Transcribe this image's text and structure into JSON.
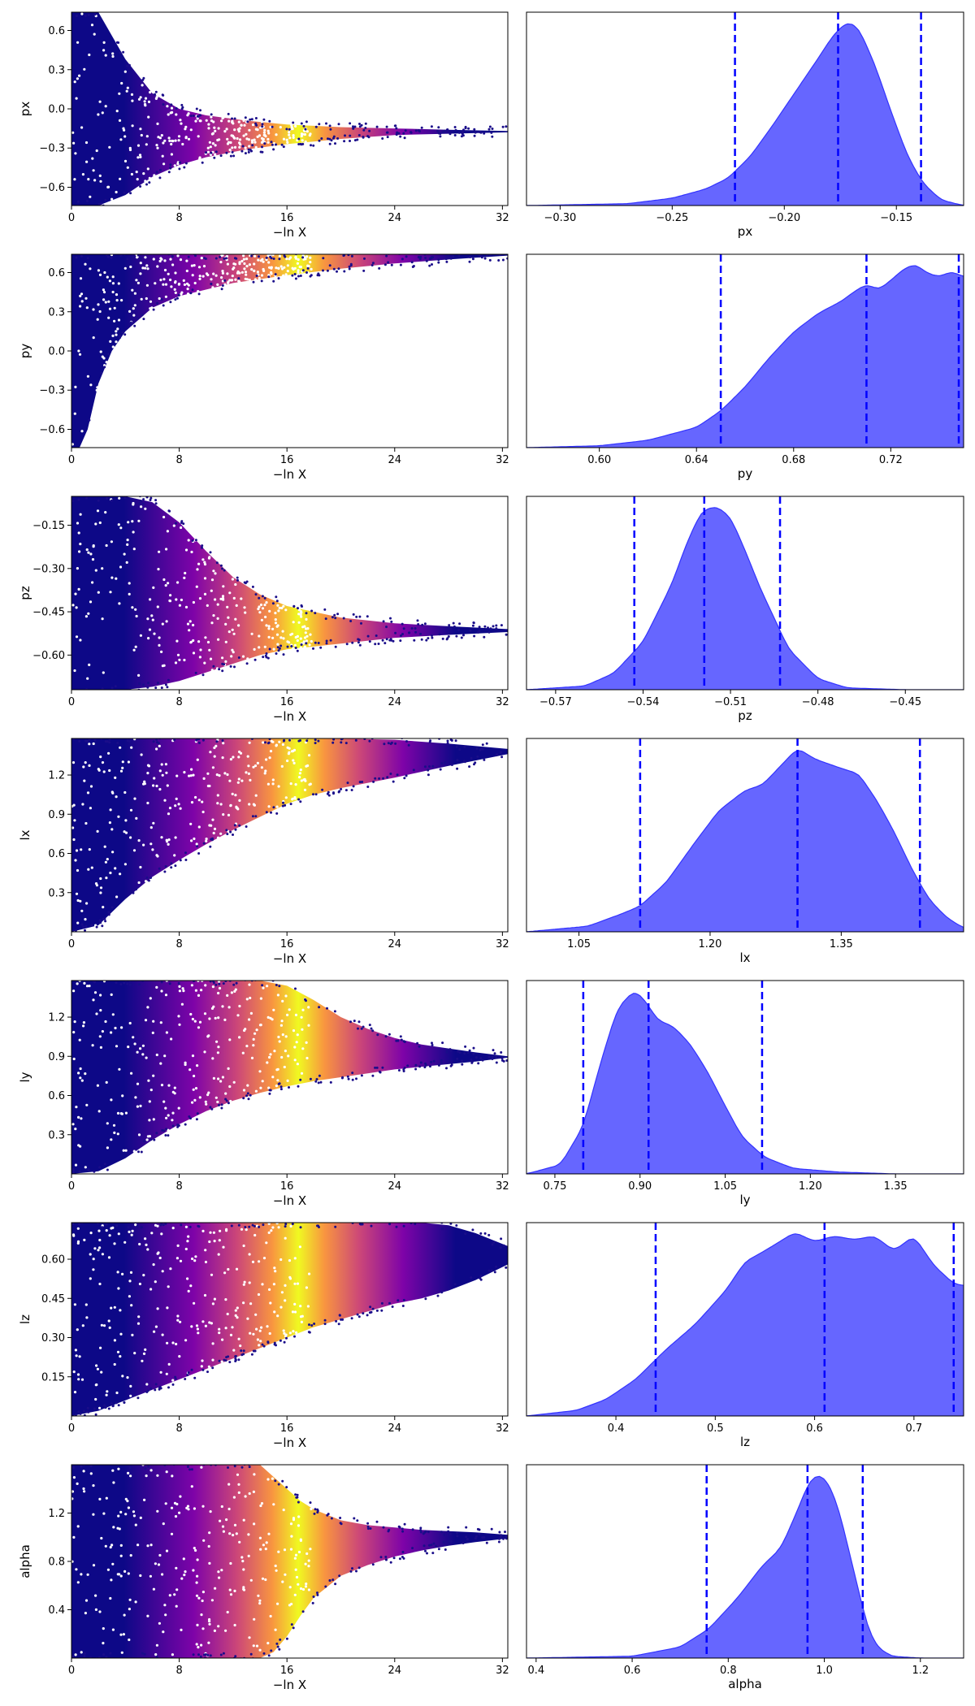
{
  "chart_data": [
    {
      "type": "scatter",
      "title": "",
      "xlabel": "−ln X",
      "ylabel": "px",
      "xlim": [
        0,
        32.4
      ],
      "ylim": [
        -0.74,
        0.74
      ],
      "xticks": [
        "0",
        "8",
        "16",
        "24",
        "32"
      ],
      "yticks": [
        "0.6",
        "0.3",
        "0.0",
        "−0.3",
        "−0.6"
      ],
      "ytick_values": [
        0.6,
        0.3,
        0.0,
        -0.3,
        -0.6
      ],
      "colormap": "plasma",
      "envelope": {
        "x": [
          0,
          2,
          4,
          6,
          8,
          10,
          13,
          16,
          20,
          24,
          28,
          32.4
        ],
        "low": [
          -0.74,
          -0.74,
          -0.66,
          -0.52,
          -0.43,
          -0.37,
          -0.31,
          -0.27,
          -0.23,
          -0.2,
          -0.19,
          -0.18
        ],
        "high": [
          0.74,
          0.74,
          0.38,
          0.12,
          0.0,
          -0.05,
          -0.09,
          -0.12,
          -0.14,
          -0.15,
          -0.16,
          -0.17
        ]
      }
    },
    {
      "type": "area",
      "title": "",
      "xlabel": "px",
      "ylabel": "",
      "xlim": [
        -0.315,
        -0.12
      ],
      "xticks": [
        "−0.30",
        "−0.25",
        "−0.20",
        "−0.15"
      ],
      "xtick_values": [
        -0.3,
        -0.25,
        -0.2,
        -0.15
      ],
      "quantiles": [
        -0.222,
        -0.176,
        -0.139
      ],
      "density": {
        "x": [
          -0.315,
          -0.27,
          -0.25,
          -0.235,
          -0.225,
          -0.215,
          -0.205,
          -0.195,
          -0.185,
          -0.178,
          -0.172,
          -0.167,
          -0.16,
          -0.152,
          -0.145,
          -0.138,
          -0.13,
          -0.12
        ],
        "y": [
          0.0,
          0.01,
          0.04,
          0.09,
          0.15,
          0.27,
          0.44,
          0.62,
          0.8,
          0.93,
          1.0,
          0.97,
          0.78,
          0.5,
          0.27,
          0.12,
          0.03,
          0.0
        ]
      }
    },
    {
      "type": "scatter",
      "title": "",
      "xlabel": "−ln X",
      "ylabel": "py",
      "xlim": [
        0,
        32.4
      ],
      "ylim": [
        -0.74,
        0.74
      ],
      "xticks": [
        "0",
        "8",
        "16",
        "24",
        "32"
      ],
      "yticks": [
        "0.6",
        "0.3",
        "0.0",
        "−0.3",
        "−0.6"
      ],
      "ytick_values": [
        0.6,
        0.3,
        0.0,
        -0.3,
        -0.6
      ],
      "colormap": "plasma",
      "envelope": {
        "x": [
          0,
          0.6,
          1.2,
          2,
          3,
          4,
          6,
          8,
          12,
          16,
          20,
          24,
          28,
          32.4
        ],
        "low": [
          -0.74,
          -0.74,
          -0.6,
          -0.25,
          0.0,
          0.15,
          0.33,
          0.42,
          0.52,
          0.58,
          0.63,
          0.67,
          0.7,
          0.73
        ],
        "high": [
          0.74,
          0.74,
          0.74,
          0.74,
          0.74,
          0.74,
          0.74,
          0.74,
          0.74,
          0.74,
          0.74,
          0.74,
          0.74,
          0.74
        ]
      }
    },
    {
      "type": "area",
      "title": "",
      "xlabel": "py",
      "ylabel": "",
      "xlim": [
        0.57,
        0.75
      ],
      "xticks": [
        "0.60",
        "0.64",
        "0.68",
        "0.72"
      ],
      "xtick_values": [
        0.6,
        0.64,
        0.68,
        0.72
      ],
      "quantiles": [
        0.65,
        0.71,
        0.748
      ],
      "density": {
        "x": [
          0.57,
          0.6,
          0.62,
          0.64,
          0.65,
          0.66,
          0.67,
          0.68,
          0.69,
          0.7,
          0.705,
          0.71,
          0.715,
          0.72,
          0.725,
          0.73,
          0.735,
          0.74,
          0.745,
          0.75
        ],
        "y": [
          0.0,
          0.01,
          0.04,
          0.11,
          0.2,
          0.33,
          0.49,
          0.63,
          0.73,
          0.8,
          0.85,
          0.89,
          0.86,
          0.91,
          0.97,
          1.0,
          0.95,
          0.93,
          0.96,
          0.93
        ]
      }
    },
    {
      "type": "scatter",
      "title": "",
      "xlabel": "−ln X",
      "ylabel": "pz",
      "xlim": [
        0,
        32.4
      ],
      "ylim": [
        -0.72,
        -0.05
      ],
      "xticks": [
        "0",
        "8",
        "16",
        "24",
        "32"
      ],
      "yticks": [
        "−0.15",
        "−0.30",
        "−0.45",
        "−0.60"
      ],
      "ytick_values": [
        -0.15,
        -0.3,
        -0.45,
        -0.6
      ],
      "colormap": "plasma",
      "envelope": {
        "x": [
          0,
          2,
          4,
          6,
          8,
          10,
          12,
          14,
          16,
          20,
          24,
          28,
          32.4
        ],
        "low": [
          -0.72,
          -0.72,
          -0.72,
          -0.71,
          -0.69,
          -0.66,
          -0.63,
          -0.6,
          -0.58,
          -0.56,
          -0.54,
          -0.53,
          -0.52
        ],
        "high": [
          -0.05,
          -0.05,
          -0.05,
          -0.07,
          -0.14,
          -0.24,
          -0.33,
          -0.39,
          -0.43,
          -0.47,
          -0.49,
          -0.5,
          -0.51
        ]
      }
    },
    {
      "type": "area",
      "title": "",
      "xlabel": "pz",
      "ylabel": "",
      "xlim": [
        -0.58,
        -0.43
      ],
      "xticks": [
        "−0.57",
        "−0.54",
        "−0.51",
        "−0.48",
        "−0.45"
      ],
      "xtick_values": [
        -0.57,
        -0.54,
        -0.51,
        -0.48,
        -0.45
      ],
      "quantiles": [
        -0.543,
        -0.519,
        -0.493
      ],
      "density": {
        "x": [
          -0.58,
          -0.56,
          -0.55,
          -0.54,
          -0.53,
          -0.525,
          -0.52,
          -0.515,
          -0.51,
          -0.505,
          -0.5,
          -0.49,
          -0.48,
          -0.47,
          -0.45,
          -0.43
        ],
        "y": [
          0.0,
          0.02,
          0.09,
          0.26,
          0.58,
          0.8,
          0.97,
          1.0,
          0.94,
          0.76,
          0.56,
          0.22,
          0.06,
          0.01,
          0.0,
          0.0
        ]
      }
    },
    {
      "type": "scatter",
      "title": "",
      "xlabel": "−ln X",
      "ylabel": "lx",
      "xlim": [
        0,
        32.4
      ],
      "ylim": [
        0.0,
        1.48
      ],
      "xticks": [
        "0",
        "8",
        "16",
        "24",
        "32"
      ],
      "yticks": [
        "1.2",
        "0.9",
        "0.6",
        "0.3"
      ],
      "ytick_values": [
        1.2,
        0.9,
        0.6,
        0.3
      ],
      "colormap": "plasma",
      "envelope": {
        "x": [
          0,
          2,
          4,
          6,
          8,
          10,
          12,
          14,
          16,
          18,
          20,
          24,
          28,
          32.4
        ],
        "low": [
          0.0,
          0.05,
          0.25,
          0.42,
          0.55,
          0.67,
          0.78,
          0.88,
          0.98,
          1.05,
          1.1,
          1.18,
          1.27,
          1.36
        ],
        "high": [
          1.48,
          1.48,
          1.48,
          1.48,
          1.48,
          1.48,
          1.48,
          1.48,
          1.48,
          1.48,
          1.48,
          1.47,
          1.44,
          1.4
        ]
      }
    },
    {
      "type": "area",
      "title": "",
      "xlabel": "lx",
      "ylabel": "",
      "xlim": [
        0.99,
        1.49
      ],
      "xticks": [
        "1.05",
        "1.20",
        "1.35"
      ],
      "xtick_values": [
        1.05,
        1.2,
        1.35
      ],
      "quantiles": [
        1.12,
        1.3,
        1.44
      ],
      "density": {
        "x": [
          0.99,
          1.06,
          1.1,
          1.12,
          1.15,
          1.18,
          1.21,
          1.24,
          1.26,
          1.28,
          1.3,
          1.32,
          1.35,
          1.37,
          1.39,
          1.41,
          1.43,
          1.45,
          1.47,
          1.49
        ],
        "y": [
          0.0,
          0.03,
          0.1,
          0.14,
          0.27,
          0.47,
          0.66,
          0.77,
          0.8,
          0.9,
          1.0,
          0.94,
          0.89,
          0.86,
          0.72,
          0.55,
          0.35,
          0.18,
          0.08,
          0.02
        ]
      }
    },
    {
      "type": "scatter",
      "title": "",
      "xlabel": "−ln X",
      "ylabel": "ly",
      "xlim": [
        0,
        32.4
      ],
      "ylim": [
        0.0,
        1.48
      ],
      "xticks": [
        "0",
        "8",
        "16",
        "24",
        "32"
      ],
      "yticks": [
        "1.2",
        "0.9",
        "0.6",
        "0.3"
      ],
      "ytick_values": [
        1.2,
        0.9,
        0.6,
        0.3
      ],
      "colormap": "plasma",
      "envelope": {
        "x": [
          0,
          2,
          4,
          6,
          8,
          10,
          12,
          14,
          16,
          18,
          20,
          22,
          24,
          26,
          28,
          30,
          32.4
        ],
        "low": [
          0.0,
          0.02,
          0.12,
          0.26,
          0.38,
          0.48,
          0.56,
          0.62,
          0.67,
          0.71,
          0.74,
          0.77,
          0.8,
          0.82,
          0.84,
          0.86,
          0.89
        ],
        "high": [
          1.48,
          1.48,
          1.48,
          1.48,
          1.48,
          1.48,
          1.48,
          1.48,
          1.44,
          1.33,
          1.2,
          1.11,
          1.04,
          0.99,
          0.96,
          0.93,
          0.9
        ]
      }
    },
    {
      "type": "area",
      "title": "",
      "xlabel": "ly",
      "ylabel": "",
      "xlim": [
        0.7,
        1.47
      ],
      "xticks": [
        "0.75",
        "0.90",
        "1.05",
        "1.20",
        "1.35"
      ],
      "xtick_values": [
        0.75,
        0.9,
        1.05,
        1.2,
        1.35
      ],
      "quantiles": [
        0.8,
        0.915,
        1.115
      ],
      "density": {
        "x": [
          0.7,
          0.76,
          0.8,
          0.83,
          0.86,
          0.89,
          0.91,
          0.93,
          0.96,
          0.99,
          1.02,
          1.05,
          1.08,
          1.12,
          1.17,
          1.25,
          1.35,
          1.47
        ],
        "y": [
          0.0,
          0.05,
          0.26,
          0.6,
          0.9,
          1.0,
          0.94,
          0.84,
          0.8,
          0.7,
          0.55,
          0.37,
          0.2,
          0.09,
          0.03,
          0.01,
          0.0,
          0.0
        ]
      }
    },
    {
      "type": "scatter",
      "title": "",
      "xlabel": "−ln X",
      "ylabel": "lz",
      "xlim": [
        0,
        32.4
      ],
      "ylim": [
        0.0,
        0.74
      ],
      "xticks": [
        "0",
        "8",
        "16",
        "24",
        "32"
      ],
      "yticks": [
        "0.60",
        "0.45",
        "0.30",
        "0.15"
      ],
      "ytick_values": [
        0.6,
        0.45,
        0.3,
        0.15
      ],
      "colormap": "plasma",
      "envelope": {
        "x": [
          0,
          2,
          4,
          6,
          8,
          10,
          12,
          14,
          16,
          18,
          20,
          22,
          24,
          26,
          28,
          30,
          32.4
        ],
        "low": [
          0.0,
          0.02,
          0.06,
          0.1,
          0.14,
          0.18,
          0.22,
          0.26,
          0.3,
          0.34,
          0.37,
          0.4,
          0.43,
          0.45,
          0.48,
          0.52,
          0.58
        ],
        "high": [
          0.74,
          0.74,
          0.74,
          0.74,
          0.74,
          0.74,
          0.74,
          0.74,
          0.74,
          0.74,
          0.74,
          0.74,
          0.74,
          0.74,
          0.73,
          0.7,
          0.65
        ]
      }
    },
    {
      "type": "area",
      "title": "",
      "xlabel": "lz",
      "ylabel": "",
      "xlim": [
        0.31,
        0.75
      ],
      "xticks": [
        "0.4",
        "0.5",
        "0.6",
        "0.7"
      ],
      "xtick_values": [
        0.4,
        0.5,
        0.6,
        0.7
      ],
      "quantiles": [
        0.44,
        0.61,
        0.74
      ],
      "density": {
        "x": [
          0.31,
          0.36,
          0.39,
          0.42,
          0.45,
          0.48,
          0.51,
          0.53,
          0.55,
          0.58,
          0.6,
          0.62,
          0.64,
          0.66,
          0.68,
          0.7,
          0.72,
          0.74,
          0.75
        ],
        "y": [
          0.0,
          0.03,
          0.09,
          0.2,
          0.36,
          0.5,
          0.68,
          0.84,
          0.9,
          1.0,
          0.95,
          0.98,
          0.96,
          0.98,
          0.9,
          0.98,
          0.82,
          0.72,
          0.71
        ]
      }
    },
    {
      "type": "scatter",
      "title": "",
      "xlabel": "−ln X",
      "ylabel": "alpha",
      "xlim": [
        0,
        32.4
      ],
      "ylim": [
        0.0,
        1.6
      ],
      "xticks": [
        "0",
        "8",
        "16",
        "24",
        "32"
      ],
      "yticks": [
        "1.2",
        "0.8",
        "0.4"
      ],
      "ytick_values": [
        1.2,
        0.8,
        0.4
      ],
      "colormap": "plasma",
      "envelope": {
        "x": [
          0,
          4,
          8,
          12,
          14,
          15,
          16,
          17,
          18,
          20,
          22,
          24,
          26,
          28,
          30,
          32.4
        ],
        "low": [
          0.0,
          0.0,
          0.0,
          0.0,
          0.0,
          0.05,
          0.18,
          0.35,
          0.5,
          0.68,
          0.77,
          0.84,
          0.89,
          0.93,
          0.96,
          0.99
        ],
        "high": [
          1.6,
          1.6,
          1.6,
          1.6,
          1.6,
          1.5,
          1.4,
          1.3,
          1.23,
          1.14,
          1.1,
          1.08,
          1.06,
          1.05,
          1.04,
          1.02
        ]
      }
    },
    {
      "type": "area",
      "title": "",
      "xlabel": "alpha",
      "ylabel": "",
      "xlim": [
        0.38,
        1.29
      ],
      "xticks": [
        "0.4",
        "0.6",
        "0.8",
        "1.0",
        "1.2"
      ],
      "xtick_values": [
        0.4,
        0.6,
        0.8,
        1.0,
        1.2
      ],
      "quantiles": [
        0.755,
        0.965,
        1.08
      ],
      "density": {
        "x": [
          0.38,
          0.6,
          0.7,
          0.76,
          0.82,
          0.87,
          0.91,
          0.94,
          0.97,
          0.99,
          1.01,
          1.03,
          1.05,
          1.07,
          1.09,
          1.11,
          1.14,
          1.2,
          1.29
        ],
        "y": [
          0.0,
          0.01,
          0.06,
          0.16,
          0.33,
          0.5,
          0.6,
          0.78,
          0.97,
          1.0,
          0.95,
          0.81,
          0.6,
          0.38,
          0.17,
          0.06,
          0.01,
          0.0,
          0.0
        ]
      }
    }
  ]
}
